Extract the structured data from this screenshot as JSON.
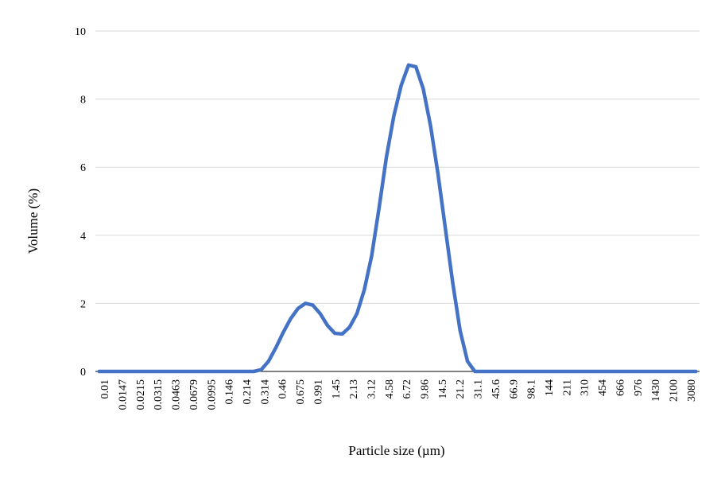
{
  "chart_data": {
    "type": "line",
    "title": "",
    "xlabel": "Particle size (µm)",
    "ylabel": "Volume (%)",
    "ylim": [
      0,
      10
    ],
    "yticks": [
      "0",
      "2",
      "4",
      "6",
      "8",
      "10"
    ],
    "grid": "horizontal",
    "legend": "none",
    "colors": {
      "line": "#4472C4",
      "grid": "#D9D9D9",
      "axis": "#000000"
    },
    "x": [
      "0.01",
      "0.0117",
      "0.0137",
      "0.016",
      "0.0187",
      "0.0219",
      "0.0256",
      "0.0299",
      "0.035",
      "0.041",
      "0.048",
      "0.0561",
      "0.0656",
      "0.0767",
      "0.0897",
      "0.105",
      "0.123",
      "0.144",
      "0.168",
      "0.197",
      "0.23",
      "0.269",
      "0.315",
      "0.368",
      "0.431",
      "0.504",
      "0.589",
      "0.689",
      "0.806",
      "0.943",
      "1.1",
      "1.29",
      "1.51",
      "1.76",
      "2.06",
      "2.41",
      "2.82",
      "3.3",
      "3.86",
      "4.51",
      "5.28",
      "6.17",
      "7.22",
      "8.44",
      "9.87",
      "11.5",
      "13.5",
      "15.8",
      "18.5",
      "21.6",
      "25.3",
      "29.6",
      "34.6",
      "40.5",
      "47.4",
      "55.4",
      "64.8",
      "75.8",
      "88.6",
      "104",
      "121",
      "142",
      "166",
      "194",
      "227",
      "265",
      "310",
      "363",
      "424",
      "496",
      "580",
      "679",
      "794",
      "928",
      "1090",
      "1270",
      "1490",
      "1740",
      "2030",
      "2380",
      "2780",
      "3250"
    ],
    "tick_labels": [
      "0.01",
      "0.0147",
      "0.0215",
      "0.0315",
      "0.0463",
      "0.0679",
      "0.0995",
      "0.146",
      "0.214",
      "0.314",
      "0.46",
      "0.675",
      "0.991",
      "1.45",
      "2.13",
      "3.12",
      "4.58",
      "6.72",
      "9.86",
      "14.5",
      "21.2",
      "31.1",
      "45.6",
      "66.9",
      "98.1",
      "144",
      "211",
      "310",
      "454",
      "666",
      "976",
      "1430",
      "2100",
      "3080"
    ],
    "series": [
      {
        "name": "",
        "values": [
          0,
          0,
          0,
          0,
          0,
          0,
          0,
          0,
          0,
          0,
          0,
          0,
          0,
          0,
          0,
          0,
          0,
          0,
          0,
          0,
          0,
          0,
          0.05,
          0.3,
          0.7,
          1.15,
          1.55,
          1.85,
          2.0,
          1.95,
          1.7,
          1.35,
          1.12,
          1.1,
          1.3,
          1.7,
          2.4,
          3.4,
          4.8,
          6.3,
          7.5,
          8.4,
          9.0,
          8.95,
          8.3,
          7.2,
          5.8,
          4.2,
          2.6,
          1.2,
          0.3,
          0,
          0,
          0,
          0,
          0,
          0,
          0,
          0,
          0,
          0,
          0,
          0,
          0,
          0,
          0,
          0,
          0,
          0,
          0,
          0,
          0,
          0,
          0,
          0,
          0,
          0,
          0,
          0,
          0,
          0,
          0
        ]
      }
    ]
  }
}
